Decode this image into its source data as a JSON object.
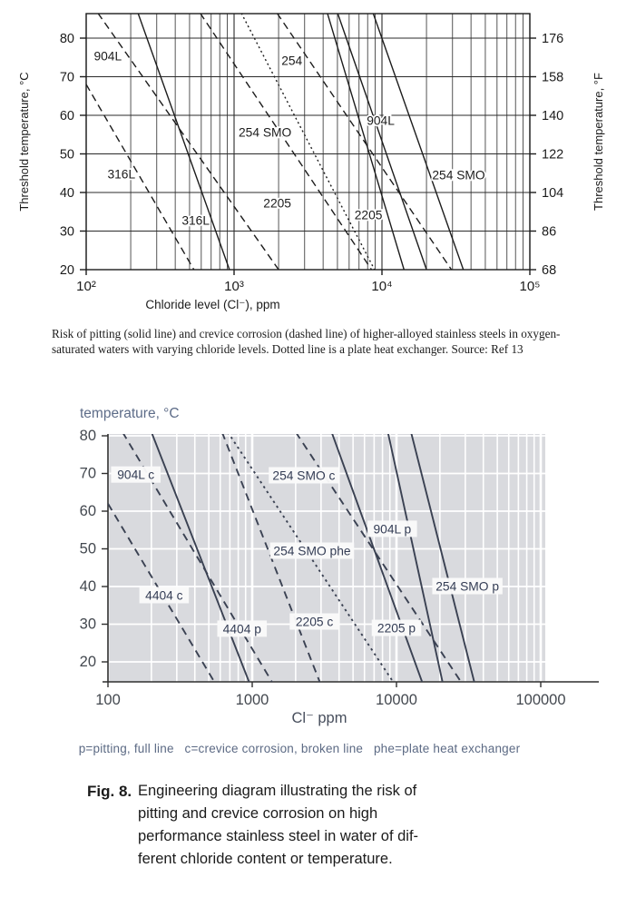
{
  "top_caption": {
    "line1": "Risk of pitting (solid line) and crevice corrosion (dashed line) of higher-alloyed stainless steels in oxygen-",
    "line2": "saturated waters with varying chloride levels. Dotted line is a plate heat exchanger. Source: Ref 13"
  },
  "bottom_legend": "p=pitting, full line   c=crevice corrosion, broken line   phe=plate heat exchanger",
  "fig_caption": {
    "label": "Fig. 8.",
    "lines": [
      "Engineering diagram illustrating the risk of",
      "pitting and crevice corrosion on high",
      "performance stainless steel in water of dif-",
      "ferent chloride content or temperature."
    ]
  },
  "chart_data": [
    {
      "id": "top",
      "type": "line",
      "x_scale": "log",
      "xlabel": "Chloride level (Cl⁻), ppm",
      "ylabel_left": "Threshold temperature, °C",
      "ylabel_right": "Threshold temperature, °F",
      "xlim": [
        100,
        100000
      ],
      "ylim": [
        20,
        86
      ],
      "grid": "full log minor grid, black on white",
      "x_ticks": [
        {
          "v": 100,
          "label": "10²"
        },
        {
          "v": 1000,
          "label": "10³"
        },
        {
          "v": 10000,
          "label": "10⁴"
        },
        {
          "v": 100000,
          "label": "10⁵"
        }
      ],
      "y_ticks": [
        {
          "c": 80,
          "c_label": "80",
          "f_label": "176"
        },
        {
          "c": 70,
          "c_label": "70",
          "f_label": "158"
        },
        {
          "c": 60,
          "c_label": "60",
          "f_label": "140"
        },
        {
          "c": 50,
          "c_label": "50",
          "f_label": "122"
        },
        {
          "c": 40,
          "c_label": "40",
          "f_label": "104"
        },
        {
          "c": 30,
          "c_label": "30",
          "f_label": "86"
        },
        {
          "c": 20,
          "c_label": "20",
          "f_label": "68"
        }
      ],
      "line_style_meaning": {
        "solid": "pitting",
        "dashed": "crevice corrosion",
        "dotted": "plate heat exchanger"
      },
      "series": [
        {
          "name": "316L pitting",
          "style": "solid",
          "points": [
            [
              224,
              86.5
            ],
            [
              930,
              20
            ]
          ]
        },
        {
          "name": "904L pitting",
          "style": "solid",
          "points": [
            [
              4270,
              86.5
            ],
            [
              14100,
              20
            ]
          ]
        },
        {
          "name": "2205 pitting",
          "style": "solid",
          "points": [
            [
              5010,
              86.5
            ],
            [
              20000,
              20
            ]
          ]
        },
        {
          "name": "254 SMO pitting",
          "style": "solid",
          "points": [
            [
              8710,
              86.5
            ],
            [
              35500,
              20
            ]
          ]
        },
        {
          "name": "316L crevice",
          "style": "dashed",
          "points": [
            [
              100,
              68
            ],
            [
              535,
              20
            ]
          ]
        },
        {
          "name": "904L crevice",
          "style": "dashed",
          "points": [
            [
              120,
              86.5
            ],
            [
              2000,
              20
            ]
          ]
        },
        {
          "name": "2205 crevice",
          "style": "dashed",
          "points": [
            [
              590,
              86.5
            ],
            [
              8500,
              20
            ]
          ]
        },
        {
          "name": "254 SMO crevice",
          "style": "dashed",
          "points": [
            [
              1950,
              86.5
            ],
            [
              29500,
              20
            ]
          ]
        },
        {
          "name": "254 SMO plate heat exchanger",
          "style": "dotted",
          "points": [
            [
              1120,
              86.5
            ],
            [
              8900,
              20
            ]
          ]
        }
      ],
      "labels": [
        {
          "text": "904L",
          "ppm": 140,
          "temp": 75.3
        },
        {
          "text": "254",
          "ppm": 2460,
          "temp": 74.1
        },
        {
          "text": "254 SMO",
          "ppm": 1620,
          "temp": 55.5
        },
        {
          "text": "904L",
          "ppm": 9800,
          "temp": 58.6
        },
        {
          "text": "254 SMO",
          "ppm": 33000,
          "temp": 44.5
        },
        {
          "text": "316L",
          "ppm": 173,
          "temp": 44.7
        },
        {
          "text": "316L",
          "ppm": 550,
          "temp": 32.7
        },
        {
          "text": "2205",
          "ppm": 1960,
          "temp": 37.2
        },
        {
          "text": "2205",
          "ppm": 8100,
          "temp": 34.1
        }
      ],
      "colors": {
        "ink": "#1c1c1c",
        "grid": "#2b2b2b",
        "bg": "#ffffff"
      }
    },
    {
      "id": "bottom",
      "type": "line",
      "x_scale": "log",
      "title": "temperature, °C",
      "xlabel": "Cl⁻ ppm",
      "xlim": [
        100,
        100000
      ],
      "ylim": [
        15,
        80
      ],
      "grid": "white gridlines on gray panel",
      "x_ticks": [
        {
          "v": 100,
          "label": "100"
        },
        {
          "v": 1000,
          "label": "1000"
        },
        {
          "v": 10000,
          "label": "10000"
        },
        {
          "v": 100000,
          "label": "100000"
        }
      ],
      "y_ticks": [
        {
          "c": 80,
          "c_label": "80"
        },
        {
          "c": 70,
          "c_label": "70"
        },
        {
          "c": 60,
          "c_label": "60"
        },
        {
          "c": 50,
          "c_label": "50"
        },
        {
          "c": 40,
          "c_label": "40"
        },
        {
          "c": 30,
          "c_label": "30"
        },
        {
          "c": 20,
          "c_label": "20"
        }
      ],
      "line_style_meaning": {
        "solid": "p = pitting",
        "dashed": "c = crevice corrosion",
        "dotted": "phe = plate heat exchanger"
      },
      "series": [
        {
          "name": "4404 p",
          "style": "solid",
          "points": [
            [
              200,
              81
            ],
            [
              955,
              14.5
            ]
          ]
        },
        {
          "name": "904L p",
          "style": "solid",
          "points": [
            [
              3550,
              81
            ],
            [
              15100,
              14.5
            ]
          ]
        },
        {
          "name": "2205 p",
          "style": "solid",
          "points": [
            [
              8710,
              81
            ],
            [
              20900,
              14.5
            ]
          ]
        },
        {
          "name": "254 SMO p",
          "style": "solid",
          "points": [
            [
              12600,
              81
            ],
            [
              34700,
              14.5
            ]
          ]
        },
        {
          "name": "4404 c",
          "style": "dashed",
          "points": [
            [
              100,
              62
            ],
            [
              550,
              14.5
            ]
          ]
        },
        {
          "name": "904L c",
          "style": "dashed",
          "points": [
            [
              126,
              81
            ],
            [
              1380,
              14.5
            ]
          ]
        },
        {
          "name": "2205 c",
          "style": "dashed",
          "points": [
            [
              617,
              81
            ],
            [
              2950,
              14.5
            ]
          ]
        },
        {
          "name": "254 SMO c",
          "style": "dashed",
          "points": [
            [
              2000,
              81
            ],
            [
              28200,
              14.5
            ]
          ]
        },
        {
          "name": "254 SMO phe",
          "style": "dotted",
          "points": [
            [
              676,
              81
            ],
            [
              9550,
              14.5
            ]
          ]
        }
      ],
      "labels": [
        {
          "text": "904L c",
          "ppm": 156,
          "temp": 69.6,
          "chip": true
        },
        {
          "text": "254 SMO c",
          "ppm": 2280,
          "temp": 69.4,
          "chip": true
        },
        {
          "text": "254 SMO phe",
          "ppm": 2600,
          "temp": 49.4,
          "chip": true
        },
        {
          "text": "904L p",
          "ppm": 9350,
          "temp": 55.2,
          "chip": true
        },
        {
          "text": "254 SMO p",
          "ppm": 31000,
          "temp": 40.0,
          "chip": true
        },
        {
          "text": "4404 c",
          "ppm": 245,
          "temp": 37.6,
          "chip": true
        },
        {
          "text": "4404 p",
          "ppm": 850,
          "temp": 28.7,
          "chip": true
        },
        {
          "text": "2205 c",
          "ppm": 2700,
          "temp": 30.6,
          "chip": true
        },
        {
          "text": "2205 p",
          "ppm": 10000,
          "temp": 28.9,
          "chip": true
        }
      ],
      "colors": {
        "bg": "#d9dade",
        "grid": "#ffffff",
        "line": "#3a4152",
        "tick_text": "#43484f",
        "accent_text": "#5d6c88",
        "axis": "#2f2f2f",
        "chip_bg": "#fafafa",
        "chip_text": "#343d55"
      }
    }
  ]
}
